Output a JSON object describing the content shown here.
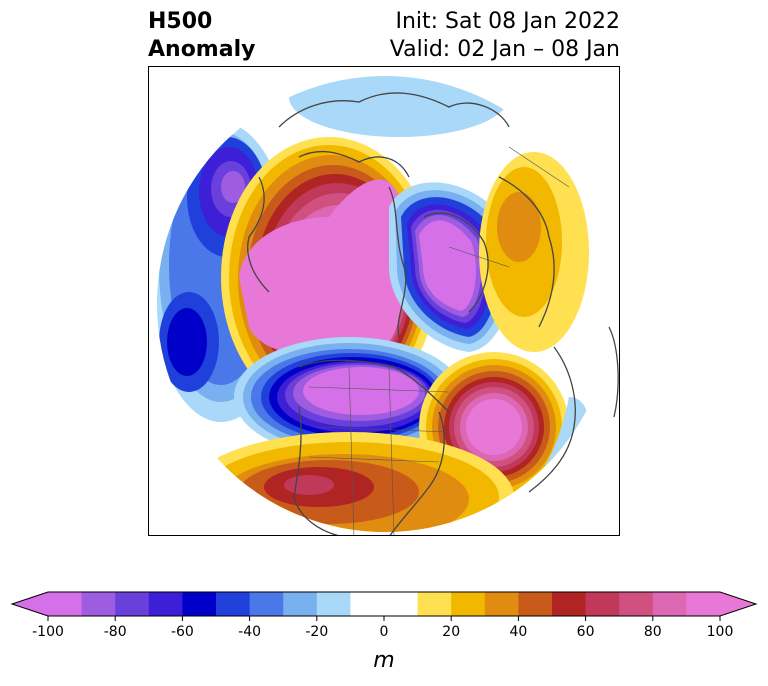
{
  "title": {
    "line1": "H500",
    "line2": "Anomaly"
  },
  "info": {
    "init": "Init: Sat 08 Jan 2022",
    "valid": "Valid: 02 Jan – 08 Jan"
  },
  "colorbar": {
    "unit": "m",
    "ticks": [
      "-100",
      "-80",
      "-60",
      "-40",
      "-20",
      "0",
      "20",
      "40",
      "60",
      "80",
      "100"
    ],
    "levels": [
      -100,
      -90,
      -80,
      -70,
      -60,
      -50,
      -40,
      -30,
      -20,
      -10,
      10,
      20,
      30,
      40,
      50,
      60,
      70,
      80,
      90,
      100
    ],
    "colors": [
      "#d670e8",
      "#9e5ce0",
      "#6a40dc",
      "#3c1fd6",
      "#0000c8",
      "#2040dc",
      "#4a78e8",
      "#78b0f0",
      "#aad8f8",
      "#ffffff",
      "#ffe050",
      "#f2b800",
      "#e08c10",
      "#c85a1a",
      "#b02424",
      "#c0385a",
      "#d05080",
      "#dc68b4",
      "#e878d8"
    ],
    "extend_low": "#d670e8",
    "extend_high": "#e878d8"
  },
  "map": {
    "projection": "north-polar-stereographic",
    "field": "500 hPa geopotential height anomaly",
    "anomaly_centers": [
      {
        "region": "Arctic / Siberia",
        "sign": "positive",
        "max_m": 100
      },
      {
        "region": "Eurasia high latitudes",
        "sign": "negative",
        "min_m": -100
      },
      {
        "region": "Canada",
        "sign": "negative",
        "min_m": -100
      },
      {
        "region": "North Atlantic",
        "sign": "positive",
        "max_m": 100
      },
      {
        "region": "North Pacific",
        "sign": "negative",
        "min_m": -80
      },
      {
        "region": "Southern United States",
        "sign": "positive",
        "max_m": 60
      },
      {
        "region": "Eastern Europe",
        "sign": "positive",
        "max_m": 40
      }
    ]
  }
}
